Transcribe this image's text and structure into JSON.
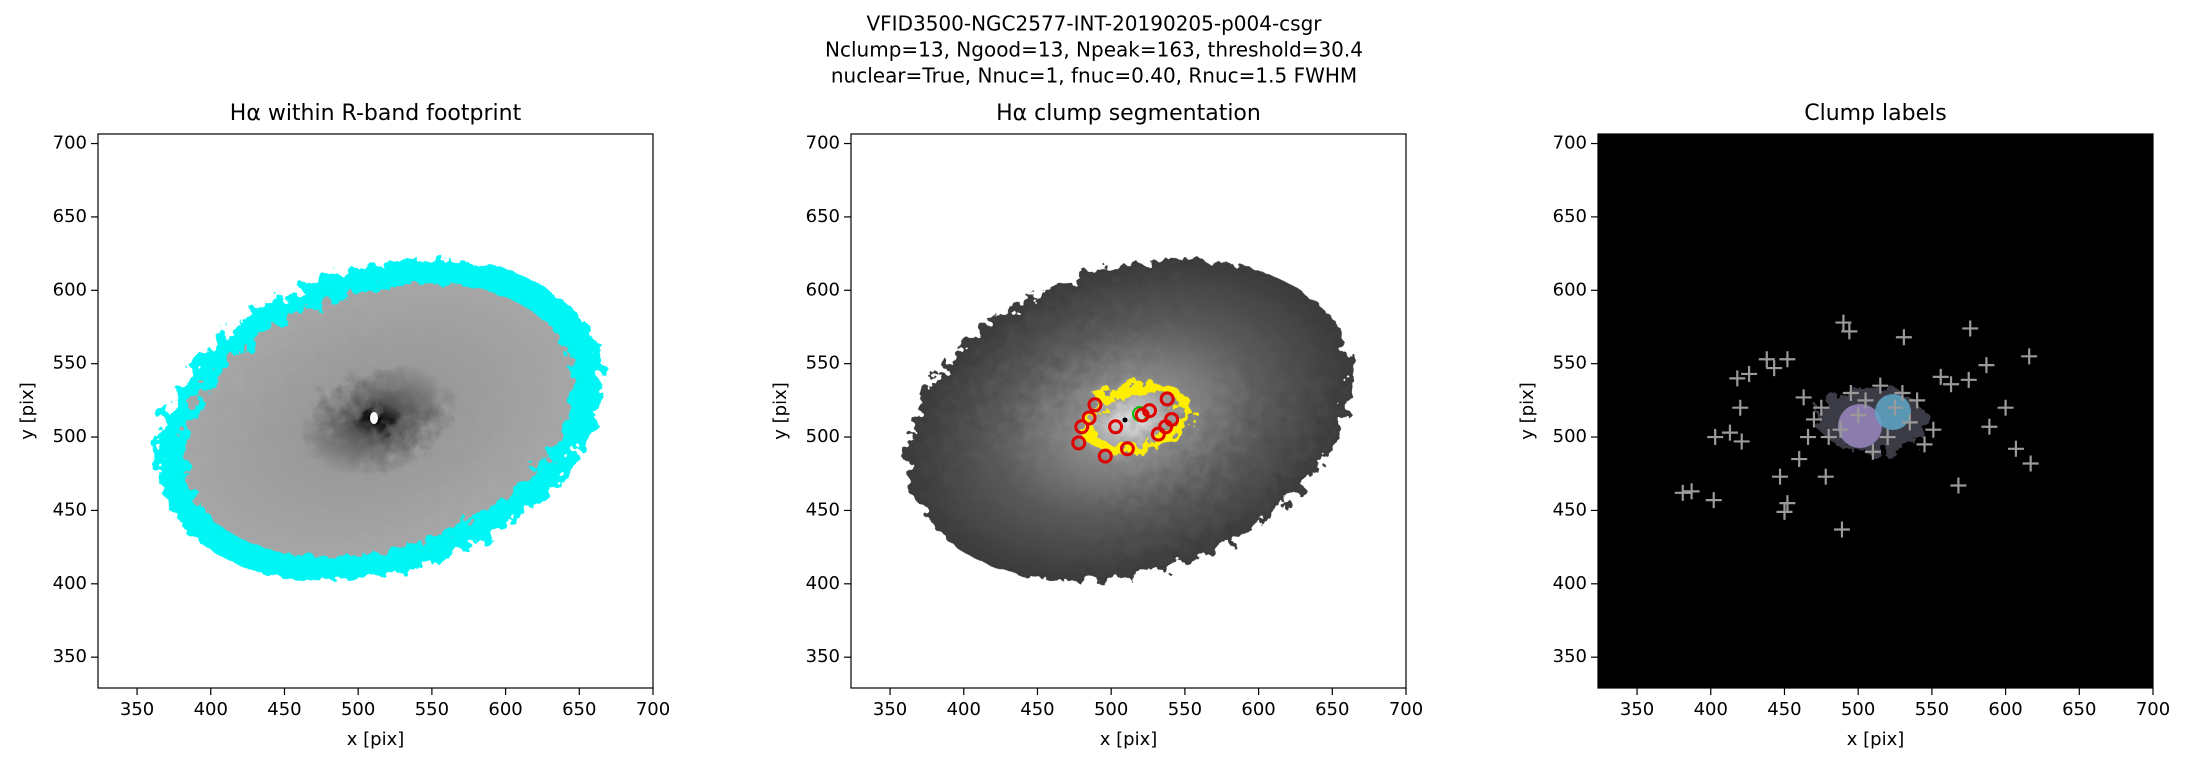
{
  "figure_title": [
    "VFID3500-NGC2577-INT-20190205-p004-csgr",
    "Nclump=13, Ngood=13, Npeak=163, threshold=30.4",
    "nuclear=True, Nnuc=1, fnuc=0.40, Rnuc=1.5 FWHM"
  ],
  "chart_data": [
    {
      "type": "image",
      "title": "Hα within R-band footprint",
      "xlabel": "x [pix]",
      "ylabel": "y [pix]",
      "xlim": [
        323.5,
        700
      ],
      "ylim": [
        329,
        706.5
      ],
      "xticks": [
        350,
        400,
        450,
        500,
        550,
        600,
        650,
        700
      ],
      "yticks": [
        350,
        400,
        450,
        500,
        550,
        600,
        650,
        700
      ]
    },
    {
      "type": "scatter",
      "title": "Hα clump segmentation",
      "xlabel": "x [pix]",
      "ylabel": "y [pix]",
      "xlim": [
        323.5,
        700
      ],
      "ylim": [
        329,
        706.5
      ],
      "xticks": [
        350,
        400,
        450,
        500,
        550,
        600,
        650,
        700
      ],
      "yticks": [
        350,
        400,
        450,
        500,
        550,
        600,
        650,
        700
      ],
      "marker": "circle",
      "color": "#e00000",
      "x": [
        480,
        485,
        489,
        478,
        496,
        511,
        532,
        537,
        541,
        538,
        526,
        521,
        503
      ],
      "y": [
        507,
        513,
        522,
        496,
        487,
        492,
        502,
        507,
        512,
        526,
        518,
        515,
        507
      ]
    },
    {
      "type": "scatter",
      "title": "Clump labels",
      "xlabel": "x [pix]",
      "ylabel": "y [pix]",
      "xlim": [
        323.5,
        700
      ],
      "ylim": [
        329,
        706.5
      ],
      "xticks": [
        350,
        400,
        450,
        500,
        550,
        600,
        650,
        700
      ],
      "yticks": [
        350,
        400,
        450,
        500,
        550,
        600,
        650,
        700
      ],
      "marker": "plus",
      "color": "#9a9a9a",
      "x": [
        381,
        387,
        402,
        403,
        413,
        418,
        420,
        426,
        421,
        438,
        443,
        452,
        447,
        450,
        452,
        463,
        466,
        478,
        489,
        490,
        494,
        531,
        551,
        556,
        563,
        568,
        576,
        575,
        587,
        589,
        607,
        616,
        617,
        600,
        470,
        480,
        495,
        505,
        515,
        525,
        535,
        545,
        488,
        510,
        530,
        500,
        520,
        540,
        460,
        475
      ],
      "y": [
        462,
        463,
        457,
        500,
        503,
        540,
        520,
        543,
        497,
        553,
        547,
        553,
        473,
        449,
        455,
        527,
        500,
        473,
        437,
        578,
        572,
        568,
        505,
        541,
        536,
        467,
        574,
        539,
        549,
        507,
        492,
        555,
        482,
        520,
        512,
        500,
        530,
        525,
        535,
        520,
        510,
        495,
        505,
        490,
        530,
        515,
        500,
        525,
        485,
        520
      ]
    }
  ]
}
